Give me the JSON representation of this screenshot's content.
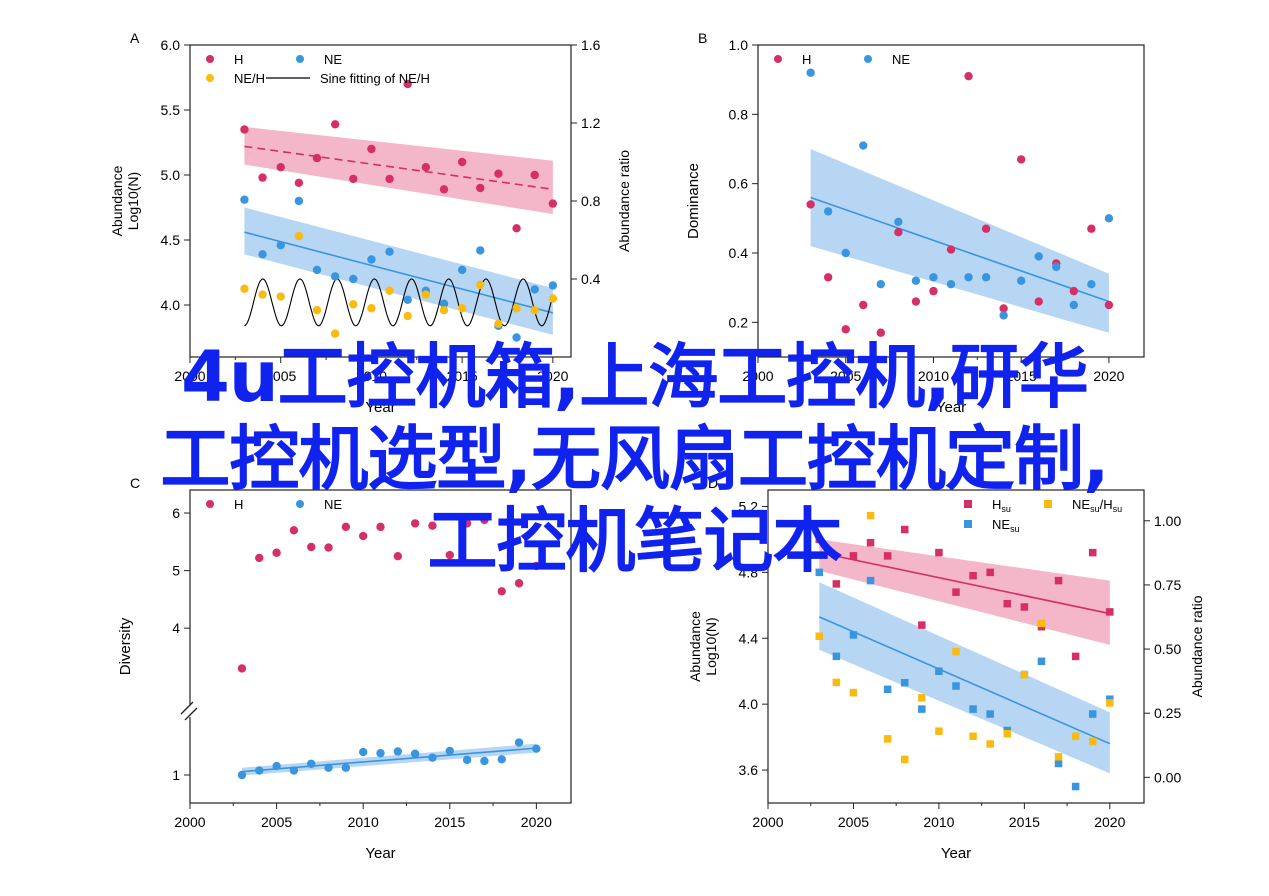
{
  "colors": {
    "H": "#d62f65",
    "NE": "#3a95e0",
    "ratio": "#f9bb10",
    "H_band": "#f2a9bf",
    "NE_band": "#a9cff2",
    "overlay": "#1022ee"
  },
  "overlay_text": [
    "4u工控机箱,上海工控机,研华",
    "工控机选型,无风扇工控机定制,",
    "工控机笔记本"
  ],
  "chart_data": [
    {
      "id": "A",
      "panel_label": "A",
      "type": "scatter",
      "xlabel": "Year",
      "ylabel_lines": [
        "Abundance",
        "Log10(N)"
      ],
      "y2label": "Abundance ratio",
      "xlim": [
        2000,
        2021
      ],
      "xticks": [
        2000,
        2005,
        2010,
        2015,
        2020
      ],
      "ylim": [
        3.6,
        6.0
      ],
      "yticks": [
        4.0,
        4.5,
        5.0,
        5.5,
        6.0
      ],
      "y2lim": [
        0.0,
        1.6
      ],
      "y2ticks": [
        0.4,
        0.8,
        1.2,
        1.6
      ],
      "legend": [
        "H",
        "NE",
        "NE/H",
        "Sine fitting of NE/H"
      ],
      "series": [
        {
          "name": "H",
          "marker": "circle",
          "color": "#d62f65",
          "axis": "y",
          "x": [
            2003,
            2004,
            2005,
            2006,
            2007,
            2008,
            2009,
            2010,
            2011,
            2012,
            2013,
            2014,
            2015,
            2016,
            2017,
            2018,
            2019,
            2020
          ],
          "y": [
            5.35,
            4.98,
            5.06,
            4.94,
            5.13,
            5.39,
            4.97,
            5.2,
            4.97,
            5.7,
            5.06,
            4.89,
            5.1,
            4.9,
            5.01,
            4.59,
            5.0,
            4.78
          ],
          "trend": [
            [
              2003,
              5.22
            ],
            [
              2020,
              4.89
            ]
          ],
          "band": [
            [
              2003,
              5.08,
              5.37
            ],
            [
              2020,
              4.7,
              5.11
            ]
          ]
        },
        {
          "name": "NE",
          "marker": "circle",
          "color": "#3a95e0",
          "axis": "y",
          "x": [
            2003,
            2004,
            2005,
            2006,
            2007,
            2008,
            2009,
            2010,
            2011,
            2012,
            2013,
            2014,
            2015,
            2016,
            2017,
            2018,
            2019,
            2020
          ],
          "y": [
            4.81,
            4.39,
            4.46,
            4.8,
            4.27,
            4.22,
            4.2,
            4.35,
            4.41,
            4.04,
            4.11,
            4.01,
            4.27,
            4.42,
            3.84,
            3.75,
            4.12,
            4.15
          ],
          "trend": [
            [
              2003,
              4.56
            ],
            [
              2020,
              3.94
            ]
          ],
          "band": [
            [
              2003,
              4.39,
              4.75
            ],
            [
              2020,
              3.77,
              4.13
            ]
          ]
        },
        {
          "name": "NE/H",
          "marker": "circle",
          "color": "#f9bb10",
          "axis": "y2",
          "x": [
            2003,
            2004,
            2005,
            2006,
            2007,
            2008,
            2009,
            2010,
            2011,
            2012,
            2013,
            2014,
            2015,
            2016,
            2017,
            2018,
            2019,
            2020
          ],
          "y": [
            0.35,
            0.32,
            0.31,
            0.62,
            0.24,
            0.12,
            0.27,
            0.25,
            0.34,
            0.21,
            0.32,
            0.24,
            0.25,
            0.37,
            0.17,
            0.25,
            0.24,
            0.3
          ]
        },
        {
          "name": "Sine fitting of NE/H",
          "type": "line",
          "color": "#000000",
          "axis": "y2",
          "sine": {
            "mean": 0.28,
            "amp": 0.12,
            "period": 2.05,
            "phase": 2003.5,
            "x_range": [
              2003,
              2020
            ]
          }
        }
      ]
    },
    {
      "id": "B",
      "panel_label": "B",
      "type": "scatter",
      "xlabel": "Year",
      "ylabel": "Dominance",
      "xlim": [
        2000,
        2022
      ],
      "xticks": [
        2000,
        2005,
        2010,
        2015,
        2020
      ],
      "ylim": [
        0.1,
        1.0
      ],
      "yticks": [
        0.2,
        0.4,
        0.6,
        0.8,
        1.0
      ],
      "legend": [
        "H",
        "NE"
      ],
      "series": [
        {
          "name": "H",
          "marker": "circle",
          "color": "#d62f65",
          "x": [
            2003,
            2004,
            2005,
            2006,
            2007,
            2008,
            2009,
            2010,
            2011,
            2012,
            2013,
            2014,
            2015,
            2016,
            2017,
            2018,
            2019,
            2020
          ],
          "y": [
            0.54,
            0.33,
            0.18,
            0.25,
            0.17,
            0.46,
            0.26,
            0.29,
            0.41,
            0.91,
            0.47,
            0.24,
            0.67,
            0.26,
            0.37,
            0.29,
            0.47,
            0.25
          ]
        },
        {
          "name": "NE",
          "marker": "circle",
          "color": "#3a95e0",
          "x": [
            2003,
            2004,
            2005,
            2006,
            2007,
            2008,
            2009,
            2010,
            2011,
            2012,
            2013,
            2014,
            2015,
            2016,
            2017,
            2018,
            2019,
            2020
          ],
          "y": [
            0.92,
            0.52,
            0.4,
            0.71,
            0.31,
            0.49,
            0.32,
            0.33,
            0.31,
            0.33,
            0.33,
            0.22,
            0.32,
            0.39,
            0.36,
            0.25,
            0.31,
            0.5
          ],
          "trend": [
            [
              2003,
              0.56
            ],
            [
              2020,
              0.26
            ]
          ],
          "band": [
            [
              2003,
              0.42,
              0.7
            ],
            [
              2020,
              0.17,
              0.34
            ]
          ]
        }
      ]
    },
    {
      "id": "C",
      "panel_label": "C",
      "type": "scatter",
      "xlabel": "Year",
      "ylabel": "Diversity",
      "xlim": [
        2000,
        2022
      ],
      "xticks": [
        2000,
        2005,
        2010,
        2015,
        2020
      ],
      "broken_axis": true,
      "ylim_lower": [
        0.5,
        2.0
      ],
      "yticks_lower": [
        1
      ],
      "ylim_upper": [
        2.7,
        6.4
      ],
      "yticks_upper": [
        4,
        5,
        6
      ],
      "legend": [
        "H",
        "NE"
      ],
      "series": [
        {
          "name": "H",
          "marker": "circle",
          "color": "#d62f65",
          "x": [
            2003,
            2004,
            2005,
            2006,
            2007,
            2008,
            2009,
            2010,
            2011,
            2012,
            2013,
            2014,
            2015,
            2016,
            2017,
            2018,
            2019,
            2020
          ],
          "y": [
            3.3,
            5.22,
            5.31,
            5.7,
            5.41,
            5.4,
            5.76,
            5.6,
            5.76,
            5.25,
            5.82,
            5.78,
            5.27,
            5.82,
            5.88,
            4.64,
            4.78,
            5.08
          ]
        },
        {
          "name": "NE",
          "marker": "circle",
          "color": "#3a95e0",
          "x": [
            2003,
            2004,
            2005,
            2006,
            2007,
            2008,
            2009,
            2010,
            2011,
            2012,
            2013,
            2014,
            2015,
            2016,
            2017,
            2018,
            2019,
            2020
          ],
          "y": [
            1.0,
            1.08,
            1.16,
            1.08,
            1.2,
            1.13,
            1.13,
            1.41,
            1.39,
            1.42,
            1.38,
            1.31,
            1.43,
            1.27,
            1.25,
            1.28,
            1.58,
            1.47
          ],
          "trend": [
            [
              2003,
              1.06
            ],
            [
              2020,
              1.48
            ]
          ],
          "band": [
            [
              2003,
              0.99,
              1.13
            ],
            [
              2020,
              1.4,
              1.56
            ]
          ]
        }
      ]
    },
    {
      "id": "D",
      "panel_label": "D",
      "type": "scatter",
      "xlabel": "Year",
      "ylabel_lines": [
        "Abundance",
        "Log10(N)"
      ],
      "y2label": "Abundance ratio",
      "xlim": [
        2000,
        2022
      ],
      "xticks": [
        2000,
        2005,
        2010,
        2015,
        2020
      ],
      "ylim": [
        3.4,
        5.3
      ],
      "yticks": [
        3.6,
        4.0,
        4.4,
        4.8,
        5.2
      ],
      "y2lim": [
        -0.1,
        1.12
      ],
      "y2ticks": [
        0.0,
        0.25,
        0.5,
        0.75,
        1.0
      ],
      "legend": [
        "Hsu",
        "NEsu",
        "NEsu/Hsu"
      ],
      "series": [
        {
          "name": "Hsu",
          "marker": "square",
          "color": "#d62f65",
          "axis": "y",
          "x": [
            2003,
            2004,
            2005,
            2006,
            2007,
            2008,
            2009,
            2010,
            2011,
            2012,
            2013,
            2014,
            2015,
            2016,
            2017,
            2018,
            2019,
            2020
          ],
          "y": [
            5.0,
            4.73,
            4.9,
            4.98,
            4.9,
            5.06,
            4.48,
            4.92,
            4.68,
            4.78,
            4.8,
            4.61,
            4.59,
            4.47,
            4.75,
            4.29,
            4.92,
            4.56
          ],
          "trend": [
            [
              2003,
              4.92
            ],
            [
              2020,
              4.55
            ]
          ],
          "band": [
            [
              2003,
              4.81,
              5.0
            ],
            [
              2020,
              4.36,
              4.75
            ]
          ]
        },
        {
          "name": "NEsu",
          "marker": "square",
          "color": "#3a95e0",
          "axis": "y",
          "x": [
            2003,
            2004,
            2005,
            2006,
            2007,
            2008,
            2009,
            2010,
            2011,
            2012,
            2013,
            2014,
            2015,
            2016,
            2017,
            2018,
            2019,
            2020
          ],
          "y": [
            4.8,
            4.29,
            4.42,
            4.75,
            4.09,
            4.13,
            3.97,
            4.2,
            4.11,
            3.97,
            3.94,
            3.84,
            4.18,
            4.26,
            3.64,
            3.5,
            3.94,
            4.03
          ],
          "trend": [
            [
              2003,
              4.53
            ],
            [
              2020,
              3.76
            ]
          ],
          "band": [
            [
              2003,
              4.33,
              4.74
            ],
            [
              2020,
              3.58,
              3.95
            ]
          ]
        },
        {
          "name": "NEsu/Hsu",
          "marker": "square",
          "color": "#f9bb10",
          "axis": "y2",
          "x": [
            2003,
            2004,
            2005,
            2006,
            2007,
            2008,
            2009,
            2010,
            2011,
            2012,
            2013,
            2014,
            2015,
            2016,
            2017,
            2018,
            2019,
            2020
          ],
          "y": [
            0.55,
            0.37,
            0.33,
            1.02,
            0.15,
            0.07,
            0.31,
            0.18,
            0.49,
            0.16,
            0.13,
            0.17,
            0.4,
            0.6,
            0.08,
            0.16,
            0.14,
            0.29
          ]
        }
      ]
    }
  ]
}
